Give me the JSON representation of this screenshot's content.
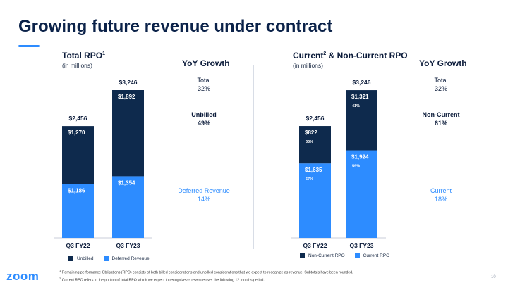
{
  "slide": {
    "title": "Growing future revenue under contract",
    "page_number": "10",
    "logo_text": "zoom"
  },
  "left": {
    "title": "Total RPO",
    "title_sup": "1",
    "subtitle": "(in millions)",
    "yoy_heading": "YoY Growth",
    "yoy": [
      {
        "label": "Total",
        "value": "32%"
      },
      {
        "label": "Unbilled",
        "value": "49%"
      },
      {
        "label": "Deferred Revenue",
        "value": "14%"
      }
    ],
    "legend": [
      {
        "label": "Unbilled",
        "color": "#0e2a4d"
      },
      {
        "label": "Deferred Revenue",
        "color": "#2d8cff"
      }
    ]
  },
  "right": {
    "title_a": "Current",
    "title_sup": "2",
    "title_b": " & Non-Current RPO",
    "subtitle": "(in millions)",
    "yoy_heading": "YoY Growth",
    "yoy": [
      {
        "label": "Total",
        "value": "32%"
      },
      {
        "label": "Non-Current",
        "value": "61%"
      },
      {
        "label": "Current",
        "value": "18%"
      }
    ],
    "legend": [
      {
        "label": "Non-Current RPO",
        "color": "#0e2a4d"
      },
      {
        "label": "Current RPO",
        "color": "#2d8cff"
      }
    ]
  },
  "footnotes": [
    {
      "sup": "1",
      "text": "Remaining performance Obligations (RPO) consists of both billed considerations and unbilled considerations that we expect to recognize as revenue. Subtotals have been rounded."
    },
    {
      "sup": "2",
      "text": "Current RPO refers to the portion of total RPO which we expect to recognize as revenue over the following 12 months period."
    }
  ],
  "chart_data": [
    {
      "type": "bar",
      "stacked": true,
      "title": "Total RPO",
      "ylabel": "(in millions)",
      "categories": [
        "Q3 FY22",
        "Q3 FY23"
      ],
      "totals": [
        "$2,456",
        "$3,246"
      ],
      "total_values": [
        2456,
        3246
      ],
      "series": [
        {
          "name": "Deferred Revenue",
          "color": "#2d8cff",
          "values": [
            1186,
            1354
          ],
          "labels": [
            "$1,186",
            "$1,354"
          ],
          "pct": [
            "",
            ""
          ]
        },
        {
          "name": "Unbilled",
          "color": "#0e2a4d",
          "values": [
            1270,
            1892
          ],
          "labels": [
            "$1,270",
            "$1,892"
          ],
          "pct": [
            "",
            ""
          ]
        }
      ]
    },
    {
      "type": "bar",
      "stacked": true,
      "title": "Current & Non-Current RPO",
      "ylabel": "(in millions)",
      "categories": [
        "Q3 FY22",
        "Q3 FY23"
      ],
      "totals": [
        "$2,456",
        "$3,246"
      ],
      "total_values": [
        2456,
        3246
      ],
      "series": [
        {
          "name": "Current RPO",
          "color": "#2d8cff",
          "values": [
            1635,
            1924
          ],
          "labels": [
            "$1,635",
            "$1,924"
          ],
          "pct": [
            "67%",
            "59%"
          ]
        },
        {
          "name": "Non-Current RPO",
          "color": "#0e2a4d",
          "values": [
            822,
            1321
          ],
          "labels": [
            "$822",
            "$1,321"
          ],
          "pct": [
            "33%",
            "41%"
          ]
        }
      ]
    }
  ]
}
